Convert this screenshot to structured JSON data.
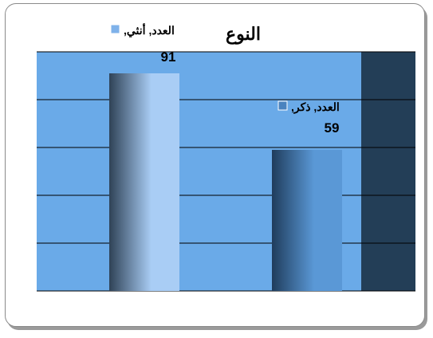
{
  "chart_data": {
    "type": "bar",
    "title": "النوع",
    "categories": [
      "أنثي",
      "ذكر"
    ],
    "series": [
      {
        "name": "العدد",
        "values": [
          91,
          59
        ]
      }
    ],
    "data_labels": [
      "العدد, أنثي, 91",
      "العدد, ذكر, 59"
    ],
    "ylim": [
      0,
      100
    ],
    "gridlines": true,
    "legend": "none",
    "colors": {
      "plot_bg": "#6aaae8",
      "wall": "#233e57",
      "gridline": "#000000",
      "bar1_light": "#a9cdf5",
      "bar1_dark": "#2f4256",
      "bar2_light": "#5a98d6",
      "bar2_dark": "#1f3c5c",
      "marker1": "#7fb2ea",
      "marker2": "#4a83bf"
    }
  }
}
